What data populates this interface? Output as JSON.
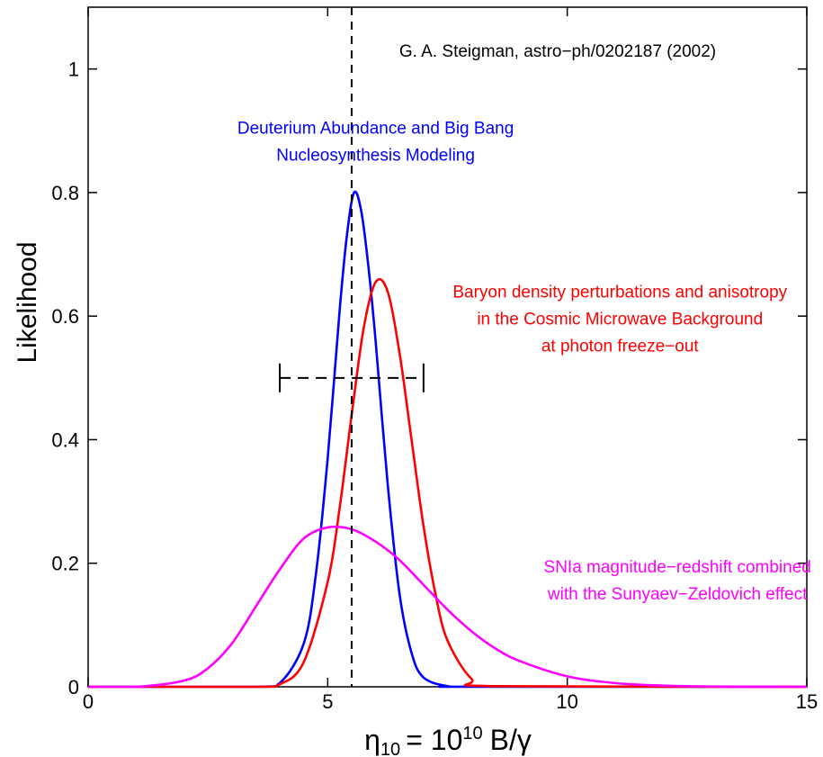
{
  "chart_data": {
    "type": "line",
    "ylabel": "Likelihood",
    "xlabel": {
      "eta": "η",
      "eta_sub": "10",
      "eq": "= 10",
      "exp": "10",
      "tail": "B/γ"
    },
    "xlim": [
      0,
      15
    ],
    "ylim": [
      0,
      1.1
    ],
    "xticks": [
      0,
      5,
      10,
      15
    ],
    "xtick_labels": [
      "0",
      "5",
      "10",
      "15"
    ],
    "yticks": [
      0,
      0.2,
      0.4,
      0.6,
      0.8,
      1
    ],
    "ytick_labels": [
      "0",
      "0.2",
      "0.4",
      "0.6",
      "0.8",
      "1"
    ],
    "grid": false,
    "series": [
      {
        "color": "#0000ff",
        "x": [
          0,
          3.5,
          4.0,
          4.5,
          4.75,
          5.0,
          5.25,
          5.4,
          5.55,
          5.7,
          5.85,
          6.0,
          6.25,
          6.5,
          6.75,
          7.0,
          7.5,
          8.0,
          15
        ],
        "y": [
          0,
          0.0,
          0.006,
          0.07,
          0.18,
          0.37,
          0.61,
          0.73,
          0.8,
          0.77,
          0.68,
          0.56,
          0.33,
          0.15,
          0.055,
          0.015,
          0.001,
          0.0,
          0
        ]
      },
      {
        "color": "#ff0000",
        "x": [
          0,
          3.5,
          4.0,
          4.5,
          5.0,
          5.25,
          5.5,
          5.75,
          6.0,
          6.25,
          6.5,
          6.75,
          7.0,
          7.25,
          7.5,
          8.0,
          8.5,
          15
        ],
        "y": [
          0,
          0.0,
          0.004,
          0.04,
          0.17,
          0.29,
          0.44,
          0.58,
          0.655,
          0.64,
          0.54,
          0.4,
          0.26,
          0.15,
          0.075,
          0.013,
          0.001,
          0
        ]
      },
      {
        "color": "#ff00ff",
        "x": [
          0,
          1.0,
          2.0,
          2.5,
          3.0,
          3.5,
          4.0,
          4.5,
          5.0,
          5.5,
          6.0,
          6.5,
          7.0,
          7.5,
          8.0,
          8.5,
          9.0,
          10.0,
          11.0,
          12.0,
          13.0,
          14.0,
          15.0
        ],
        "y": [
          0,
          0.0,
          0.01,
          0.03,
          0.07,
          0.13,
          0.19,
          0.24,
          0.258,
          0.255,
          0.235,
          0.205,
          0.165,
          0.125,
          0.09,
          0.062,
          0.042,
          0.017,
          0.006,
          0.002,
          0.0005,
          0.0001,
          0
        ]
      }
    ],
    "vertical_line": {
      "x": 5.5,
      "style": "dashed",
      "color": "#000000"
    },
    "error_bar": {
      "x_low": 4.0,
      "x_high": 7.0,
      "y": 0.5,
      "style": "dashed",
      "color": "#000000"
    },
    "annotations": [
      {
        "lines": [
          "G. A. Steigman, astro−ph/0202187 (2002)"
        ],
        "color": "#000000",
        "x": 9.8,
        "y": 1.02
      },
      {
        "lines": [
          "Deuterium Abundance and Big Bang",
          "Nucleosynthesis Modeling"
        ],
        "color": "#0000ff",
        "x": 6.0,
        "y": 0.895
      },
      {
        "lines": [
          "Baryon density perturbations and anisotropy",
          "in the Cosmic Microwave Background",
          "at photon freeze−out"
        ],
        "color": "#ff0000",
        "x": 11.1,
        "y": 0.63
      },
      {
        "lines": [
          "SNIa magnitude−redshift combined",
          "with the Sunyaev−Zeldovich effect"
        ],
        "color": "#ff00ff",
        "x": 12.3,
        "y": 0.185
      }
    ]
  }
}
